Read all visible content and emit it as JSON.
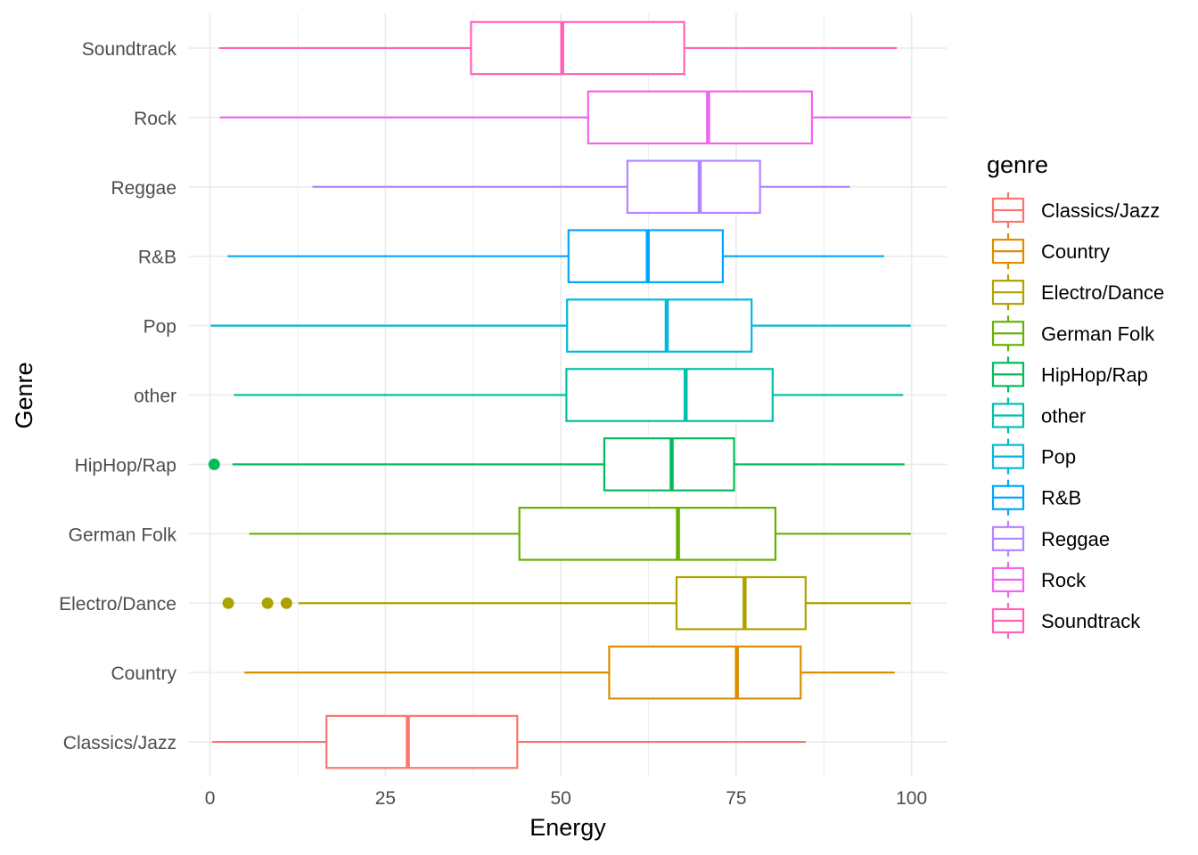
{
  "chart_data": {
    "type": "boxplot",
    "orientation": "horizontal",
    "xlabel": "Energy",
    "ylabel": "Genre",
    "xlim": [
      -3,
      105
    ],
    "x_ticks": [
      0,
      25,
      50,
      75,
      100
    ],
    "grid": true,
    "legend": {
      "title": "genre",
      "position": "right"
    },
    "categories": [
      "Classics/Jazz",
      "Country",
      "Electro/Dance",
      "German Folk",
      "HipHop/Rap",
      "other",
      "Pop",
      "R&B",
      "Reggae",
      "Rock",
      "Soundtrack"
    ],
    "series": [
      {
        "name": "Classics/Jazz",
        "color": "#F8766D",
        "whisker_low": 0.3,
        "q1": 16.6,
        "median": 28.2,
        "q3": 43.8,
        "whisker_high": 84.9,
        "outliers": []
      },
      {
        "name": "Country",
        "color": "#DB8E00",
        "whisker_low": 4.9,
        "q1": 56.9,
        "median": 75.1,
        "q3": 84.2,
        "whisker_high": 97.6,
        "outliers": []
      },
      {
        "name": "Electro/Dance",
        "color": "#AEA200",
        "whisker_low": 12.6,
        "q1": 66.5,
        "median": 76.2,
        "q3": 84.9,
        "whisker_high": 99.9,
        "outliers": [
          2.6,
          8.2,
          10.9
        ]
      },
      {
        "name": "German Folk",
        "color": "#64B200",
        "whisker_low": 5.6,
        "q1": 44.1,
        "median": 66.7,
        "q3": 80.6,
        "whisker_high": 99.9,
        "outliers": []
      },
      {
        "name": "HipHop/Rap",
        "color": "#00BD5C",
        "whisker_low": 3.2,
        "q1": 56.2,
        "median": 65.8,
        "q3": 74.7,
        "whisker_high": 99.0,
        "outliers": [
          0.6
        ]
      },
      {
        "name": "other",
        "color": "#00C1A7",
        "whisker_low": 3.4,
        "q1": 50.8,
        "median": 67.8,
        "q3": 80.2,
        "whisker_high": 98.8,
        "outliers": []
      },
      {
        "name": "Pop",
        "color": "#00BADE",
        "whisker_low": 0.1,
        "q1": 50.9,
        "median": 65.1,
        "q3": 77.2,
        "whisker_high": 99.9,
        "outliers": []
      },
      {
        "name": "R&B",
        "color": "#00A6FF",
        "whisker_low": 2.5,
        "q1": 51.1,
        "median": 62.4,
        "q3": 73.1,
        "whisker_high": 96.1,
        "outliers": []
      },
      {
        "name": "Reggae",
        "color": "#B385FF",
        "whisker_low": 14.6,
        "q1": 59.5,
        "median": 69.8,
        "q3": 78.4,
        "whisker_high": 91.2,
        "outliers": []
      },
      {
        "name": "Rock",
        "color": "#EF67EB",
        "whisker_low": 1.4,
        "q1": 53.9,
        "median": 71.0,
        "q3": 85.8,
        "whisker_high": 99.9,
        "outliers": []
      },
      {
        "name": "Soundtrack",
        "color": "#FF63B6",
        "whisker_low": 1.3,
        "q1": 37.2,
        "median": 50.2,
        "q3": 67.6,
        "whisker_high": 97.9,
        "outliers": []
      }
    ]
  }
}
